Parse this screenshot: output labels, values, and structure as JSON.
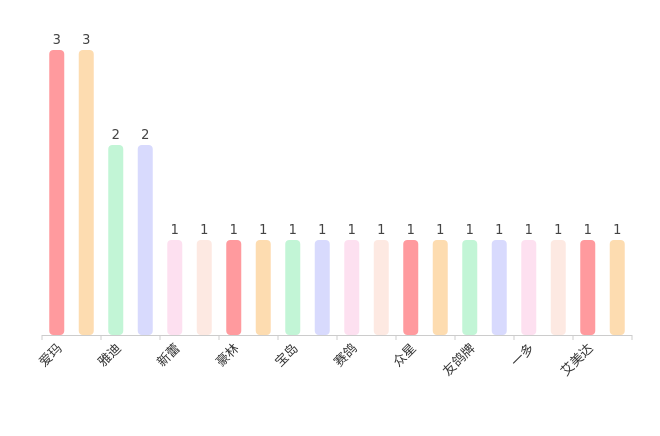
{
  "chart_data": {
    "type": "bar",
    "categories": [
      "爱玛",
      "",
      "雅迪",
      "",
      "新蕾",
      "",
      "豪林",
      "",
      "宝岛",
      "",
      "赛鸽",
      "",
      "众星",
      "",
      "友鸽牌",
      "",
      "一多",
      "",
      "艾美达",
      ""
    ],
    "values": [
      3,
      3,
      2,
      2,
      1,
      1,
      1,
      1,
      1,
      1,
      1,
      1,
      1,
      1,
      1,
      1,
      1,
      1,
      1,
      1
    ],
    "data_labels": [
      "3",
      "3",
      "2",
      "2",
      "1",
      "1",
      "1",
      "1",
      "1",
      "1",
      "1",
      "1",
      "1",
      "1",
      "1",
      "1",
      "1",
      "1",
      "1",
      "1"
    ],
    "ylim": [
      0,
      3
    ],
    "grid": false,
    "legend": "none",
    "colors": [
      "#ff9a9e",
      "#fddcb0",
      "#c2f5d6",
      "#d8dafd",
      "#fde0f0",
      "#fde9e2"
    ]
  }
}
